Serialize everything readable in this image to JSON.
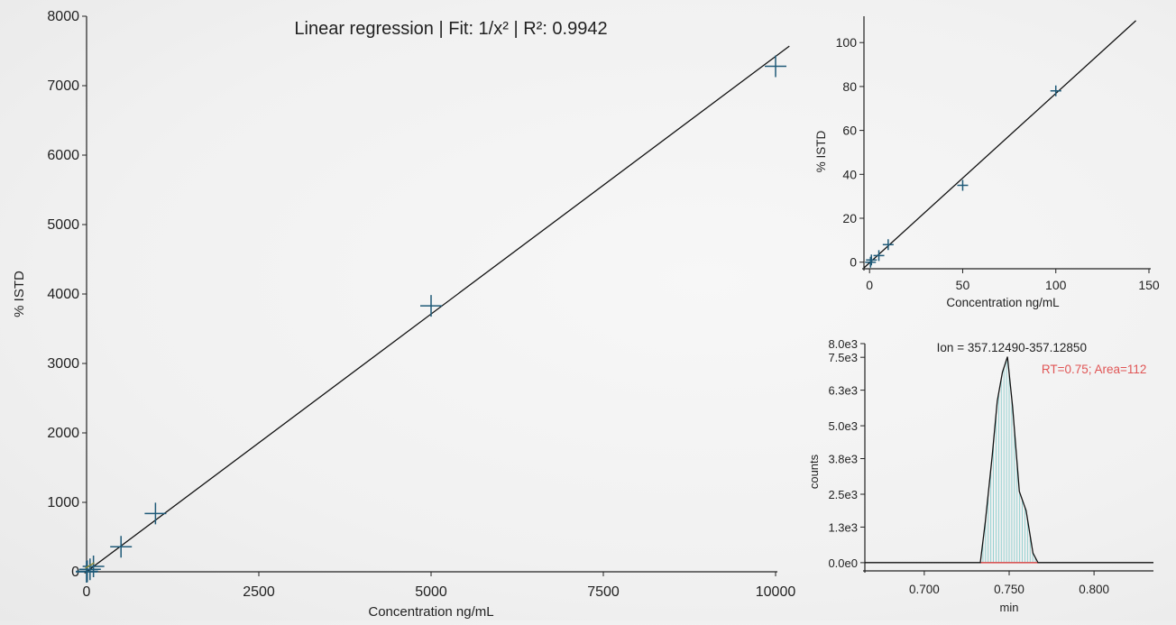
{
  "chart_data": [
    {
      "id": "main",
      "type": "scatter",
      "title": "Linear regression | Fit: 1/x² | R²: 0.9942",
      "xlabel": "Concentration ng/mL",
      "ylabel": "% ISTD",
      "xlim": [
        0,
        10000
      ],
      "ylim": [
        0,
        8000
      ],
      "xticks": [
        0,
        2500,
        5000,
        7500,
        10000
      ],
      "yticks": [
        0,
        1000,
        2000,
        3000,
        4000,
        5000,
        6000,
        7000,
        8000
      ],
      "points": [
        {
          "x": 10000,
          "y": 7280
        },
        {
          "x": 5000,
          "y": 3830
        },
        {
          "x": 1000,
          "y": 840
        },
        {
          "x": 500,
          "y": 360
        },
        {
          "x": 100,
          "y": 78
        },
        {
          "x": 50,
          "y": 35
        },
        {
          "x": 10,
          "y": 8
        },
        {
          "x": 5,
          "y": 3
        },
        {
          "x": 1,
          "y": 1
        },
        {
          "x": 0.5,
          "y": 0
        }
      ],
      "fit": {
        "x": [
          -30,
          10200
        ],
        "y": [
          -20,
          7570
        ]
      },
      "marker_color": "#1f5a78"
    },
    {
      "id": "zoom",
      "type": "scatter",
      "xlabel": "Concentration ng/mL",
      "ylabel": "% ISTD",
      "xlim": [
        -3,
        150
      ],
      "ylim": [
        -3,
        112
      ],
      "xticks": [
        0,
        50,
        100,
        150
      ],
      "yticks": [
        0,
        20,
        40,
        60,
        80,
        100
      ],
      "points": [
        {
          "x": 100,
          "y": 78
        },
        {
          "x": 50,
          "y": 35
        },
        {
          "x": 10,
          "y": 8
        },
        {
          "x": 5,
          "y": 3
        },
        {
          "x": 1,
          "y": 1
        },
        {
          "x": 0.5,
          "y": 0
        }
      ],
      "fit": {
        "x": [
          -3,
          143
        ],
        "y": [
          -2.6,
          110
        ]
      },
      "marker_color": "#1f5a78"
    },
    {
      "id": "peak",
      "type": "area",
      "title": "Ion = 357.12490-357.12850",
      "annotation": "RT=0.75; Area=112",
      "annotation_color": "#e05555",
      "xlabel": "min",
      "ylabel": "counts",
      "xlim": [
        0.665,
        0.835
      ],
      "ylim": [
        -300,
        8000
      ],
      "xticks": [
        0.7,
        0.75,
        0.8
      ],
      "xtick_labels": [
        "0.700",
        "0.750",
        "0.800"
      ],
      "yticks": [
        0,
        1300,
        2500,
        3800,
        5000,
        6300,
        7500,
        8000
      ],
      "ytick_labels": [
        "0.0e0",
        "1.3e3",
        "2.5e3",
        "3.8e3",
        "5.0e3",
        "6.3e3",
        "7.5e3",
        "8.0e3"
      ],
      "trace": {
        "x": [
          0.665,
          0.733,
          0.736,
          0.74,
          0.743,
          0.746,
          0.749,
          0.752,
          0.756,
          0.76,
          0.764,
          0.767,
          0.835
        ],
        "y": [
          0,
          0,
          1500,
          3900,
          5900,
          6950,
          7520,
          5700,
          2600,
          1900,
          350,
          0,
          0
        ]
      },
      "integration": {
        "start": 0.733,
        "end": 0.767
      },
      "fill_color": "#8ecfcf",
      "baseline_color": "#e05555"
    }
  ]
}
